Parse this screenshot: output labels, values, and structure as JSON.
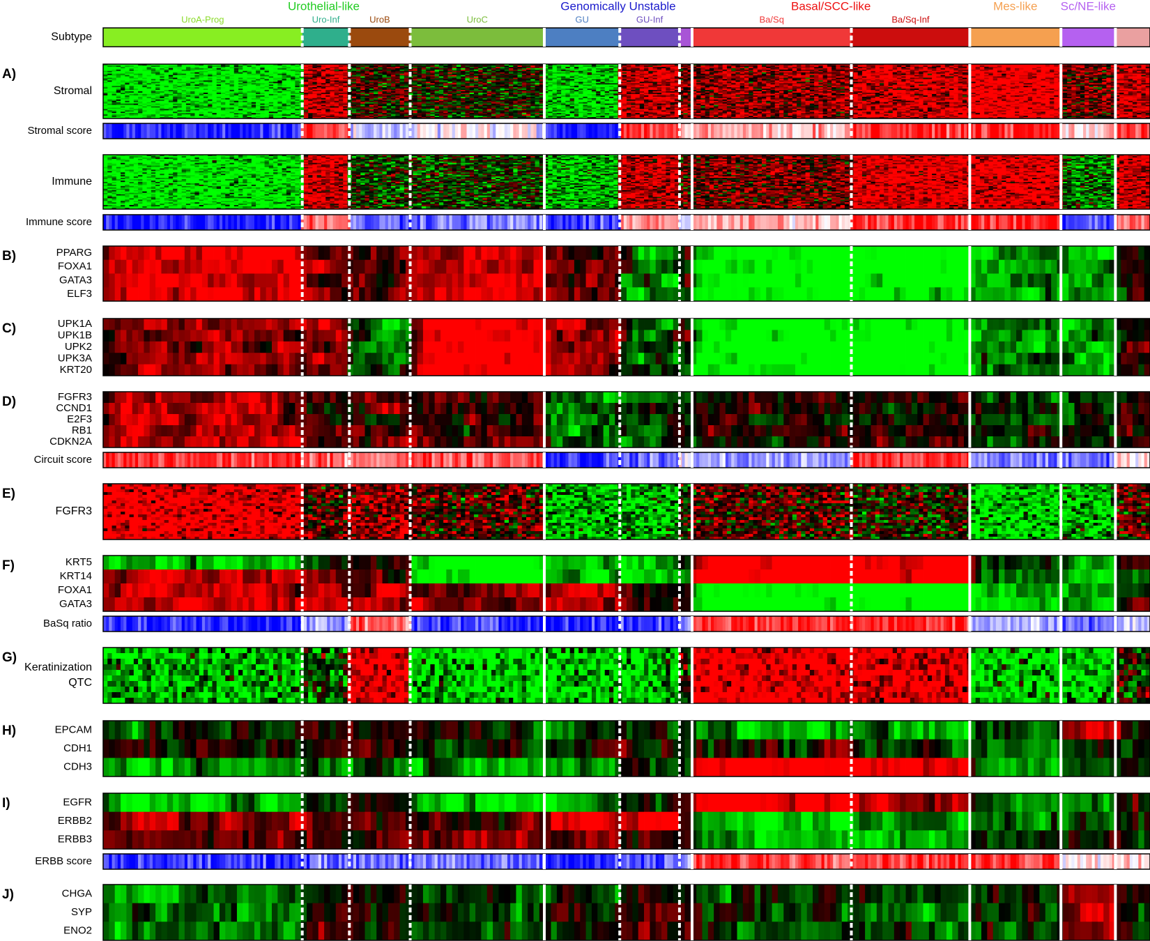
{
  "chart_data": {
    "type": "heatmap",
    "subtype_track_label": "Subtype",
    "superclasses": [
      {
        "name": "Urothelial-like",
        "color": "#22cc22"
      },
      {
        "name": "Genomically Unstable",
        "color": "#1a1acc"
      },
      {
        "name": "Basal/SCC-like",
        "color": "#ee1111"
      },
      {
        "name": "Mes-like",
        "color": "#f5a050"
      },
      {
        "name": "Sc/NE-like",
        "color": "#b561f0"
      }
    ],
    "subtypes": [
      {
        "name": "UroA-Prog",
        "color": "#88ee22",
        "label_color": "#8bdc2a",
        "share": 0.19,
        "divider": "dashed",
        "superclass": 0
      },
      {
        "name": "Uro-Inf",
        "color": "#2faf8c",
        "label_color": "#2faf8c",
        "share": 0.045,
        "divider": "dashed",
        "superclass": 0
      },
      {
        "name": "UroB",
        "color": "#9b4a0e",
        "label_color": "#9b4a0e",
        "share": 0.058,
        "divider": "dashed",
        "superclass": 0
      },
      {
        "name": "UroC",
        "color": "#7cbd3c",
        "label_color": "#7cbd3c",
        "share": 0.128,
        "divider": "solid",
        "superclass": 0
      },
      {
        "name": "GU",
        "color": "#4d7fc2",
        "label_color": "#4d7fc2",
        "share": 0.072,
        "divider": "dashed",
        "superclass": 1
      },
      {
        "name": "GU-Inf",
        "color": "#6e4fc0",
        "label_color": "#6e4fc0",
        "share": 0.057,
        "divider": "dashed",
        "superclass": 1
      },
      {
        "name": "",
        "color": "#a855d6",
        "label_color": "#a855d6",
        "share": 0.012,
        "divider": "solid",
        "superclass": 1
      },
      {
        "name": "Ba/Sq",
        "color": "#f03838",
        "label_color": "#f03838",
        "share": 0.152,
        "divider": "dashed",
        "superclass": 2
      },
      {
        "name": "Ba/Sq-Inf",
        "color": "#cc0d0d",
        "label_color": "#cc0d0d",
        "share": 0.113,
        "divider": "solid",
        "superclass": 2
      },
      {
        "name": "",
        "color": "#f5a050",
        "label_color": "#f5a050",
        "share": 0.087,
        "divider": "solid",
        "superclass": 3
      },
      {
        "name": "",
        "color": "#b561f0",
        "label_color": "#b561f0",
        "share": 0.052,
        "divider": "solid",
        "superclass": 4
      },
      {
        "name": "",
        "color": "#eaa0a0",
        "label_color": "#eaa0a0",
        "share": 0.033,
        "divider": "none",
        "superclass": -1
      }
    ],
    "panels": [
      {
        "letter": "A)",
        "tracks": [
          {
            "kind": "expr",
            "rows": [
              "Stromal"
            ],
            "rows_per_label": 40,
            "bias": [
              -0.7,
              0.55,
              0.1,
              0.0,
              -0.6,
              0.55,
              0.3,
              0.4,
              0.6,
              0.8,
              0.3,
              0.6
            ]
          },
          {
            "kind": "score",
            "rows": [
              "Stromal score"
            ],
            "bias": [
              -0.85,
              0.7,
              -0.2,
              0.0,
              -0.85,
              0.8,
              0.2,
              0.3,
              0.85,
              0.9,
              0.2,
              0.85
            ]
          }
        ]
      },
      {
        "letter": "",
        "tracks": [
          {
            "kind": "expr",
            "rows": [
              "Immune"
            ],
            "rows_per_label": 40,
            "bias": [
              -0.7,
              0.6,
              -0.1,
              -0.1,
              -0.5,
              0.55,
              0.2,
              0.3,
              0.7,
              0.7,
              -0.3,
              0.6
            ]
          },
          {
            "kind": "score",
            "rows": [
              "Immune score"
            ],
            "bias": [
              -0.85,
              0.6,
              -0.6,
              -0.5,
              -0.8,
              0.5,
              -0.3,
              0.3,
              0.85,
              0.85,
              -0.7,
              0.5
            ]
          }
        ]
      },
      {
        "letter": "B)",
        "tracks": [
          {
            "kind": "expr",
            "rows": [
              "PPARG",
              "FOXA1",
              "GATA3",
              "ELF3"
            ],
            "bias": [
              0.7,
              0.3,
              0.2,
              0.6,
              0.3,
              -0.4,
              0.2,
              -0.85,
              -0.85,
              -0.4,
              -0.5,
              0.0
            ]
          }
        ]
      },
      {
        "letter": "C)",
        "tracks": [
          {
            "kind": "expr",
            "rows": [
              "UPK1A",
              "UPK1B",
              "UPK2",
              "UPK3A",
              "KRT20"
            ],
            "bias": [
              0.4,
              0.5,
              -0.2,
              0.8,
              0.4,
              -0.2,
              0.0,
              -0.9,
              -0.85,
              -0.3,
              -0.4,
              0.1
            ]
          }
        ]
      },
      {
        "letter": "D)",
        "tracks": [
          {
            "kind": "expr",
            "rows": [
              "FGFR3",
              "CCND1",
              "E2F3",
              "RB1",
              "CDKN2A"
            ],
            "bias": [
              0.5,
              0.1,
              0.3,
              0.2,
              -0.3,
              -0.2,
              0.0,
              0.1,
              0.1,
              -0.1,
              -0.2,
              0.1
            ]
          },
          {
            "kind": "score",
            "rows": [
              "Circuit score"
            ],
            "bias": [
              0.8,
              0.6,
              0.6,
              0.7,
              -0.8,
              -0.6,
              0.0,
              -0.4,
              0.8,
              -0.5,
              -0.6,
              0.2
            ]
          }
        ]
      },
      {
        "letter": "E)",
        "tracks": [
          {
            "kind": "expr",
            "rows": [
              "FGFR3"
            ],
            "rows_per_label": 20,
            "bias": [
              0.75,
              0.2,
              0.4,
              0.2,
              -0.5,
              -0.5,
              0.0,
              0.2,
              0.0,
              -0.6,
              -0.5,
              0.2
            ]
          }
        ]
      },
      {
        "letter": "F)",
        "tracks": [
          {
            "kind": "expr",
            "rows": [
              "KRT5",
              "KRT14",
              "FOXA1",
              "GATA3"
            ],
            "bias": [
              0.1,
              0.2,
              0.3,
              -0.3,
              0.0,
              -0.5,
              0.0,
              0.2,
              0.3,
              -0.4,
              -0.5,
              0.1
            ],
            "row_bias": [
              [
                -0.6,
                0.0,
                0.0,
                -0.8,
                -0.6,
                -0.6,
                0,
                0.95,
                0.8,
                -0.2,
                -0.5,
                0.2
              ],
              [
                0.6,
                0.2,
                0.3,
                -0.8,
                -0.6,
                -0.6,
                0,
                0.95,
                0.8,
                -0.3,
                -0.5,
                0.0
              ],
              [
                0.6,
                0.4,
                0.5,
                0.5,
                0.4,
                0.1,
                0,
                -0.9,
                -0.85,
                -0.5,
                -0.4,
                0.2
              ],
              [
                0.6,
                0.4,
                0.5,
                0.4,
                0.4,
                0.0,
                0,
                -0.9,
                -0.85,
                -0.5,
                -0.5,
                0.2
              ]
            ]
          },
          {
            "kind": "score",
            "rows": [
              "BaSq ratio"
            ],
            "bias": [
              -0.85,
              -0.4,
              0.6,
              -0.8,
              -0.9,
              -0.8,
              -0.5,
              0.85,
              0.9,
              -0.3,
              -0.6,
              -0.2
            ]
          }
        ]
      },
      {
        "letter": "G)",
        "tracks": [
          {
            "kind": "expr",
            "rows": [
              "Keratinization",
              "QTC"
            ],
            "rows_per_label": 10,
            "bias": [
              -0.5,
              -0.2,
              0.7,
              -0.6,
              -0.6,
              -0.6,
              0.0,
              0.8,
              0.7,
              -0.6,
              -0.6,
              0.0
            ]
          }
        ]
      },
      {
        "letter": "H)",
        "tracks": [
          {
            "kind": "expr",
            "rows": [
              "EPCAM",
              "CDH1",
              "CDH3"
            ],
            "bias": [
              0.0,
              0.0,
              0.0,
              -0.1,
              0.0,
              0.0,
              0.0,
              0.0,
              0.0,
              -0.3,
              0.2,
              0.0
            ],
            "row_bias": [
              [
                -0.1,
                0.1,
                0.1,
                0.0,
                -0.2,
                -0.1,
                0,
                -0.5,
                -0.4,
                -0.3,
                0.6,
                0.0
              ],
              [
                0.1,
                0.2,
                0.1,
                0.0,
                0.1,
                0.0,
                0,
                0.0,
                -0.2,
                -0.4,
                -0.1,
                0.0
              ],
              [
                -0.4,
                -0.2,
                -0.2,
                -0.3,
                -0.4,
                -0.3,
                0,
                0.85,
                0.8,
                -0.4,
                -0.3,
                0.0
              ]
            ]
          }
        ]
      },
      {
        "letter": "I)",
        "tracks": [
          {
            "kind": "expr",
            "rows": [
              "EGFR",
              "ERBB2",
              "ERBB3"
            ],
            "bias": [
              0.0,
              0.0,
              0.0,
              0.0,
              0.0,
              0.0,
              0.0,
              0.0,
              0.0,
              0.0,
              0.0,
              0.0
            ],
            "row_bias": [
              [
                -0.5,
                -0.1,
                -0.1,
                -0.6,
                -0.4,
                -0.1,
                0,
                0.85,
                0.4,
                -0.2,
                -0.3,
                0.0
              ],
              [
                0.4,
                0.2,
                0.2,
                0.3,
                0.6,
                0.6,
                0,
                -0.6,
                -0.5,
                -0.1,
                -0.2,
                0.0
              ],
              [
                0.3,
                0.2,
                0.2,
                0.4,
                0.3,
                0.2,
                0,
                -0.4,
                -0.5,
                -0.1,
                0.0,
                0.0
              ]
            ]
          },
          {
            "kind": "score",
            "rows": [
              "ERBB score"
            ],
            "bias": [
              -0.8,
              -0.6,
              -0.5,
              -0.6,
              -0.85,
              -0.7,
              -0.5,
              0.8,
              0.85,
              0.8,
              0.2,
              0.2
            ]
          }
        ]
      },
      {
        "letter": "J)",
        "tracks": [
          {
            "kind": "expr",
            "rows": [
              "CHGA",
              "SYP",
              "ENO2"
            ],
            "bias": [
              -0.4,
              0.2,
              0.0,
              -0.2,
              0.0,
              0.1,
              0,
              -0.1,
              -0.2,
              -0.1,
              0.5,
              0.0
            ]
          }
        ]
      }
    ]
  }
}
